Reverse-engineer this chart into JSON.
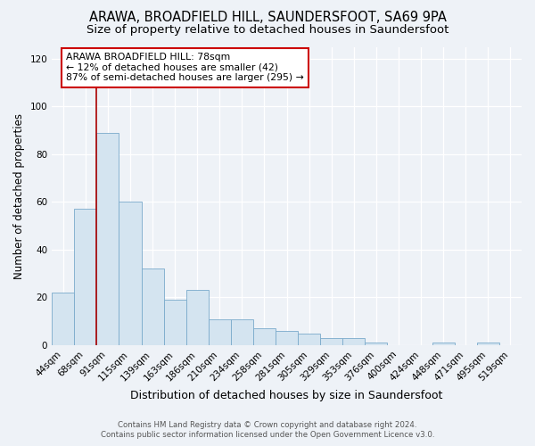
{
  "title": "ARAWA, BROADFIELD HILL, SAUNDERSFOOT, SA69 9PA",
  "subtitle": "Size of property relative to detached houses in Saundersfoot",
  "xlabel": "Distribution of detached houses by size in Saundersfoot",
  "ylabel": "Number of detached properties",
  "categories": [
    "44sqm",
    "68sqm",
    "91sqm",
    "115sqm",
    "139sqm",
    "163sqm",
    "186sqm",
    "210sqm",
    "234sqm",
    "258sqm",
    "281sqm",
    "305sqm",
    "329sqm",
    "353sqm",
    "376sqm",
    "400sqm",
    "424sqm",
    "448sqm",
    "471sqm",
    "495sqm",
    "519sqm"
  ],
  "values": [
    22,
    57,
    89,
    60,
    32,
    19,
    23,
    11,
    11,
    7,
    6,
    5,
    3,
    3,
    1,
    0,
    0,
    1,
    0,
    1,
    0
  ],
  "bar_color": "#d4e4f0",
  "bar_edge_color": "#7aaacb",
  "vline_color": "#aa0000",
  "annotation_title": "ARAWA BROADFIELD HILL: 78sqm",
  "annotation_line1": "← 12% of detached houses are smaller (42)",
  "annotation_line2": "87% of semi-detached houses are larger (295) →",
  "annotation_box_color": "#ffffff",
  "annotation_box_edge": "#cc0000",
  "ylim": [
    0,
    125
  ],
  "yticks": [
    0,
    20,
    40,
    60,
    80,
    100,
    120
  ],
  "footer1": "Contains HM Land Registry data © Crown copyright and database right 2024.",
  "footer2": "Contains public sector information licensed under the Open Government Licence v3.0.",
  "bg_color": "#eef2f7",
  "plot_bg_color": "#eef2f7",
  "grid_color": "#ffffff",
  "title_fontsize": 10.5,
  "subtitle_fontsize": 9.5,
  "tick_fontsize": 7.5,
  "ylabel_fontsize": 8.5,
  "xlabel_fontsize": 9
}
